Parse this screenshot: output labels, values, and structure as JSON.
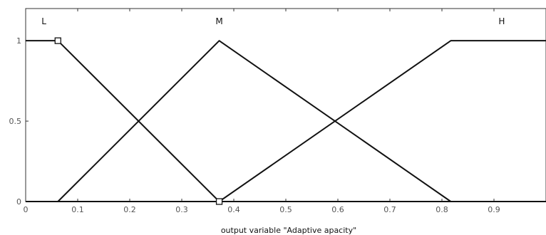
{
  "chart_data": {
    "type": "line",
    "xlabel": "output variable \"Adaptive apacity\"",
    "xlim": [
      0,
      1
    ],
    "ylim": [
      0,
      1.2
    ],
    "x_ticks": [
      0,
      0.1,
      0.2,
      0.3,
      0.4,
      0.5,
      0.6,
      0.7,
      0.8,
      0.9
    ],
    "x_tick_labels": [
      "0",
      "0.1",
      "0.2",
      "0.3",
      "0.4",
      "0.5",
      "0.6",
      "0.7",
      "0.8",
      "0.9"
    ],
    "y_ticks": [
      0,
      0.5,
      1
    ],
    "y_tick_labels": [
      "0",
      "0.5",
      "1"
    ],
    "grid": false,
    "legend": "none",
    "line_color": "#111111",
    "series": [
      {
        "name": "L",
        "x": [
          0,
          0.062,
          0.372,
          1
        ],
        "y": [
          1,
          1,
          0,
          0
        ]
      },
      {
        "name": "M",
        "x": [
          0,
          0.062,
          0.372,
          0.817,
          1
        ],
        "y": [
          0,
          0,
          1,
          0,
          0
        ]
      },
      {
        "name": "H",
        "x": [
          0,
          0.372,
          0.817,
          1
        ],
        "y": [
          0,
          0,
          1,
          1
        ]
      }
    ],
    "markers": [
      {
        "x": 0.062,
        "y": 1,
        "shape": "square"
      },
      {
        "x": 0.372,
        "y": 0,
        "shape": "square"
      }
    ]
  }
}
